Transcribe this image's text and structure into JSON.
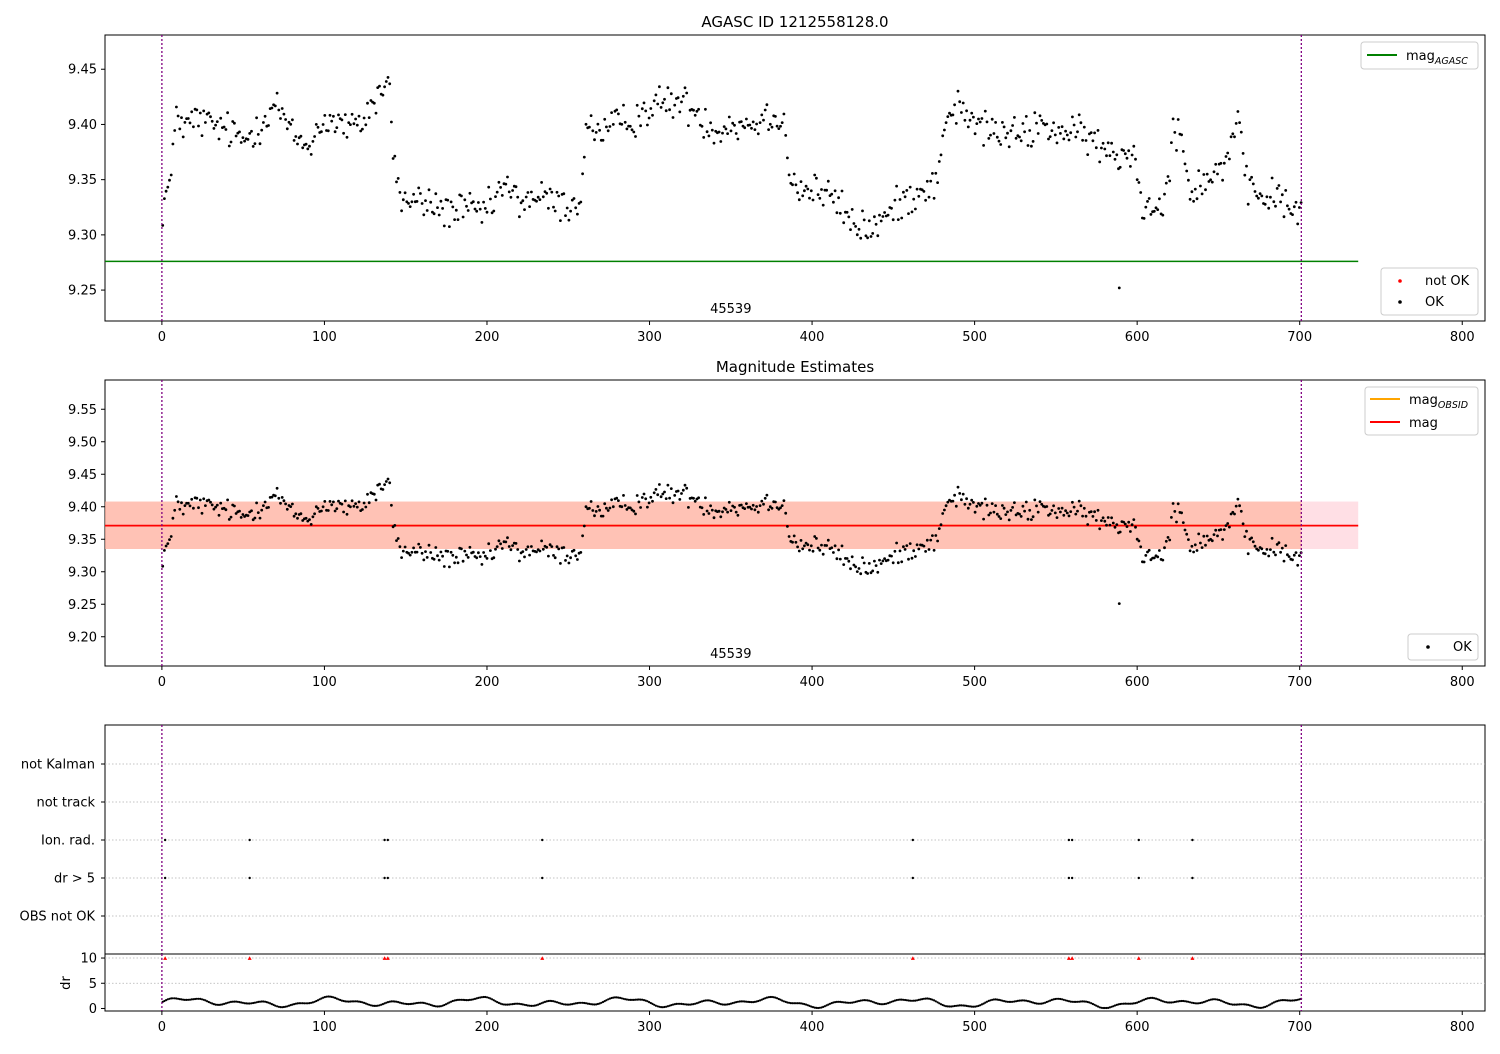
{
  "colors": {
    "ok": "#000000",
    "not_ok": "#ff0000",
    "mag_agasc": "#008000",
    "mag_obsid": "#ffa500",
    "mag": "#ff0000",
    "obs_band": "#ffa07a",
    "mag_band": "#ffc0cb",
    "vline": "#800080",
    "grid": "#b0b0b0"
  },
  "chart_data": [
    {
      "id": "panel1",
      "type": "scatter",
      "title": "AGASC ID 1212558128.0",
      "xlim": [
        -35,
        814
      ],
      "ylim": [
        9.222,
        9.481
      ],
      "xticks": [
        0,
        100,
        200,
        300,
        400,
        500,
        600,
        700,
        800
      ],
      "yticks": [
        9.25,
        9.3,
        9.35,
        9.4,
        9.45
      ],
      "ytick_labels": [
        "9.25",
        "9.30",
        "9.35",
        "9.40",
        "9.45"
      ],
      "obs_boundaries": [
        0,
        701
      ],
      "obsid_label": "45539",
      "obsid_label_x": 350,
      "mag_agasc": 9.276,
      "mag_agasc_xrange": [
        -35,
        736
      ],
      "legend_lines": [
        {
          "label": "mag",
          "sub": "AGASC",
          "color_key": "mag_agasc"
        }
      ],
      "legend_points": [
        {
          "label": "not OK",
          "color_key": "not_ok"
        },
        {
          "label": "OK",
          "color_key": "ok"
        }
      ],
      "outliers": [
        [
          589,
          9.252
        ]
      ]
    },
    {
      "id": "panel2",
      "type": "scatter",
      "title": "Magnitude Estimates",
      "xlim": [
        -35,
        814
      ],
      "ylim": [
        9.155,
        9.595
      ],
      "xticks": [
        0,
        100,
        200,
        300,
        400,
        500,
        600,
        700,
        800
      ],
      "yticks": [
        9.2,
        9.25,
        9.3,
        9.35,
        9.4,
        9.45,
        9.5,
        9.55
      ],
      "ytick_labels": [
        "9.20",
        "9.25",
        "9.30",
        "9.35",
        "9.40",
        "9.45",
        "9.50",
        "9.55"
      ],
      "obs_boundaries": [
        0,
        701
      ],
      "obsid_label": "45539",
      "obsid_label_x": 350,
      "mag": 9.371,
      "mag_band": [
        9.335,
        9.408
      ],
      "mag_band_xrange": [
        -35,
        736
      ],
      "mag_obsid": 9.371,
      "obsid_band": [
        9.335,
        9.408
      ],
      "obsid_band_xrange": [
        0,
        701
      ],
      "legend_lines": [
        {
          "label": "mag",
          "sub": "OBSID",
          "color_key": "mag_obsid"
        },
        {
          "label": "mag",
          "sub": "",
          "color_key": "mag"
        }
      ],
      "legend_points": [
        {
          "label": "OK",
          "color_key": "ok"
        }
      ],
      "outliers": [
        [
          589,
          9.251
        ]
      ]
    },
    {
      "id": "panel3",
      "type": "scatter",
      "xlim": [
        -35,
        814
      ],
      "categories": [
        "not Kalman",
        "not track",
        "Ion. rad.",
        "dr > 5",
        "OBS not OK"
      ],
      "flag_times": [
        2,
        54,
        137,
        139,
        234,
        462,
        558,
        560,
        601,
        634
      ],
      "flagged_categories": [
        "Ion. rad.",
        "dr > 5"
      ],
      "obs_boundaries": [
        0,
        701
      ]
    },
    {
      "id": "panel4",
      "type": "line",
      "ylabel": "dr",
      "xlim": [
        -35,
        814
      ],
      "ylim": [
        -0.5,
        10.8
      ],
      "yticks": [
        0,
        5,
        10
      ],
      "ytick_labels": [
        "0",
        "5",
        "10"
      ],
      "xticks": [
        0,
        100,
        200,
        300,
        400,
        500,
        600,
        700,
        800
      ],
      "dr_capped_value": 10,
      "dr_capped_times": [
        2,
        54,
        137,
        139,
        234,
        462,
        558,
        560,
        601,
        634
      ],
      "obs_boundaries": [
        0,
        701
      ]
    }
  ]
}
